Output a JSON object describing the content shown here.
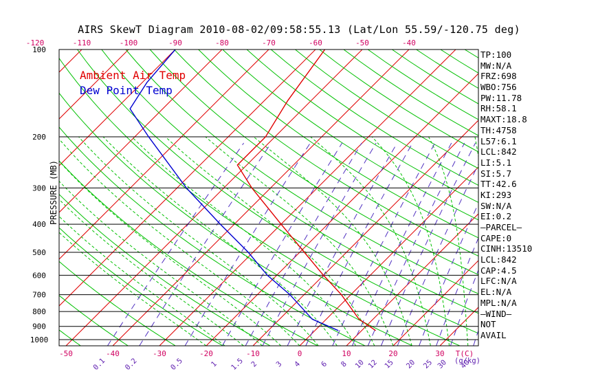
{
  "title": "AIRS SkewT Diagram 2010-08-02/09:58:55.13 (Lat/Lon 55.59/-120.75 deg)",
  "colors": {
    "temp": "#e00000",
    "dew": "#0000d0",
    "dry_adiabat": "#00c000",
    "moist_adiabat": "#00c000",
    "mixing_ratio": "#5030c0",
    "isotherm": "#e00000",
    "isobar": "#000000",
    "tick_label": "#d00060",
    "mixing_label": "#6020b0"
  },
  "chart_data": {
    "type": "line",
    "title": "AIRS SkewT Diagram 2010-08-02/09:58:55.13 (Lat/Lon 55.59/-120.75 deg)",
    "ylabel": "PRESSURE (MB)",
    "xlabel": "T(C)",
    "secondary_xlabel": "(g/kg)",
    "y_scale": "log",
    "ylim": [
      1050,
      100
    ],
    "xlim_bottom": [
      -52,
      45
    ],
    "pressure_ticks": [
      100,
      200,
      300,
      400,
      500,
      600,
      700,
      800,
      900,
      1000
    ],
    "bottom_temp_ticks": [
      -50,
      -40,
      -30,
      -20,
      -10,
      0,
      10,
      20,
      30
    ],
    "top_temp_ticks": [
      -120,
      -110,
      -100,
      -90,
      -80,
      -70,
      -60,
      -50,
      -40
    ],
    "mixing_ratio_ticks": [
      "0.1",
      "0.2",
      "0.5",
      "1",
      "1.5",
      "2",
      "3",
      "4",
      "6",
      "8",
      "10",
      "12",
      "15",
      "20",
      "25",
      "30",
      "40"
    ],
    "legend": [
      "Ambient Air Temp",
      "Dew Point Temp"
    ],
    "legend_position": "top-left",
    "series": [
      {
        "name": "Ambient Air Temp",
        "points": [
          {
            "p": 930,
            "t": 13.0
          },
          {
            "p": 850,
            "t": 7.0
          },
          {
            "p": 700,
            "t": -2.0
          },
          {
            "p": 600,
            "t": -10.0
          },
          {
            "p": 500,
            "t": -19.0
          },
          {
            "p": 400,
            "t": -30.0
          },
          {
            "p": 300,
            "t": -44.0
          },
          {
            "p": 250,
            "t": -52.0
          },
          {
            "p": 200,
            "t": -52.0
          },
          {
            "p": 150,
            "t": -55.0
          },
          {
            "p": 100,
            "t": -58.0
          }
        ]
      },
      {
        "name": "Dew Point Temp",
        "points": [
          {
            "p": 930,
            "t": 5.0
          },
          {
            "p": 850,
            "t": -3.0
          },
          {
            "p": 700,
            "t": -13.0
          },
          {
            "p": 600,
            "t": -22.0
          },
          {
            "p": 500,
            "t": -31.0
          },
          {
            "p": 400,
            "t": -43.0
          },
          {
            "p": 300,
            "t": -58.0
          },
          {
            "p": 200,
            "t": -77.0
          },
          {
            "p": 160,
            "t": -87.0
          },
          {
            "p": 130,
            "t": -89.0
          },
          {
            "p": 100,
            "t": -90.0
          }
        ]
      }
    ]
  },
  "indices": [
    "TP:100",
    "MW:N/A",
    "FRZ:698",
    "WBO:756",
    "PW:11.78",
    "RH:58.1",
    "MAXT:18.8",
    "TH:4758",
    "L57:6.1",
    "LCL:842",
    "LI:5.1",
    "SI:5.7",
    "TT:42.6",
    "KI:293",
    "SW:N/A",
    "EI:0.2",
    "—PARCEL—",
    "CAPE:0",
    "CINH:13510",
    "LCL:842",
    "CAP:4.5",
    "LFC:N/A",
    "EL:N/A",
    "MPL:N/A",
    "—WIND—",
    " NOT",
    " AVAIL"
  ]
}
